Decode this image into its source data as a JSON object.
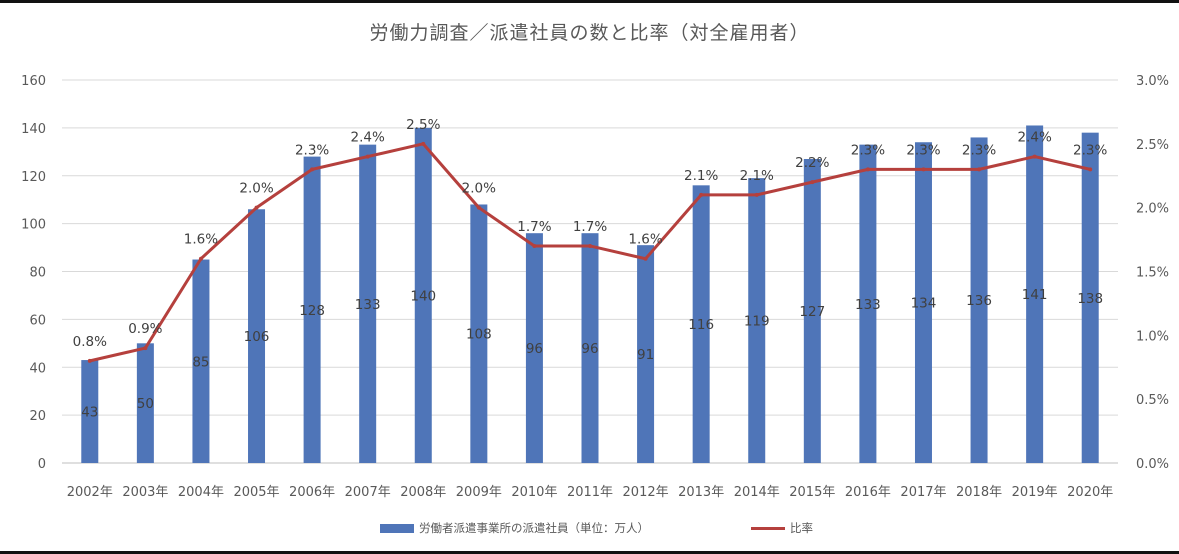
{
  "chart_data": {
    "type": "bar",
    "title": "労働力調査／派遣社員の数と比率（対全雇用者）",
    "categories": [
      "2002年",
      "2003年",
      "2004年",
      "2005年",
      "2006年",
      "2007年",
      "2008年",
      "2009年",
      "2010年",
      "2011年",
      "2012年",
      "2013年",
      "2014年",
      "2015年",
      "2016年",
      "2017年",
      "2018年",
      "2019年",
      "2020年"
    ],
    "series": [
      {
        "name": "労働者派遣事業所の派遣社員（単位：万人）",
        "type": "bar",
        "axis": "left",
        "color": "#4f75b8",
        "values": [
          43,
          50,
          85,
          106,
          128,
          133,
          140,
          108,
          96,
          96,
          91,
          116,
          119,
          127,
          133,
          134,
          136,
          141,
          138
        ]
      },
      {
        "name": "比率",
        "type": "line",
        "axis": "right",
        "color": "#b5403d",
        "values": [
          0.8,
          0.9,
          1.6,
          2.0,
          2.3,
          2.4,
          2.5,
          2.0,
          1.7,
          1.7,
          1.6,
          2.1,
          2.1,
          2.2,
          2.3,
          2.3,
          2.3,
          2.4,
          2.3
        ],
        "labels": [
          "0.8%",
          "0.9%",
          "1.6%",
          "2.0%",
          "2.3%",
          "2.4%",
          "2.5%",
          "2.0%",
          "1.7%",
          "1.7%",
          "1.6%",
          "2.1%",
          "2.1%",
          "2.2%",
          "2.3%",
          "2.3%",
          "2.3%",
          "2.4%",
          "2.3%"
        ]
      }
    ],
    "y_left": {
      "lim": [
        0,
        160
      ],
      "ticks": [
        "0",
        "20",
        "40",
        "60",
        "80",
        "100",
        "120",
        "140",
        "160"
      ]
    },
    "y_right": {
      "lim": [
        0,
        3.0
      ],
      "ticks": [
        "0.0%",
        "0.5%",
        "1.0%",
        "1.5%",
        "2.0%",
        "2.5%",
        "3.0%"
      ]
    },
    "grid": true,
    "legend_position": "bottom"
  },
  "legend": {
    "bar_label": "労働者派遣事業所の派遣社員（単位：万人）",
    "line_label": "比率"
  }
}
